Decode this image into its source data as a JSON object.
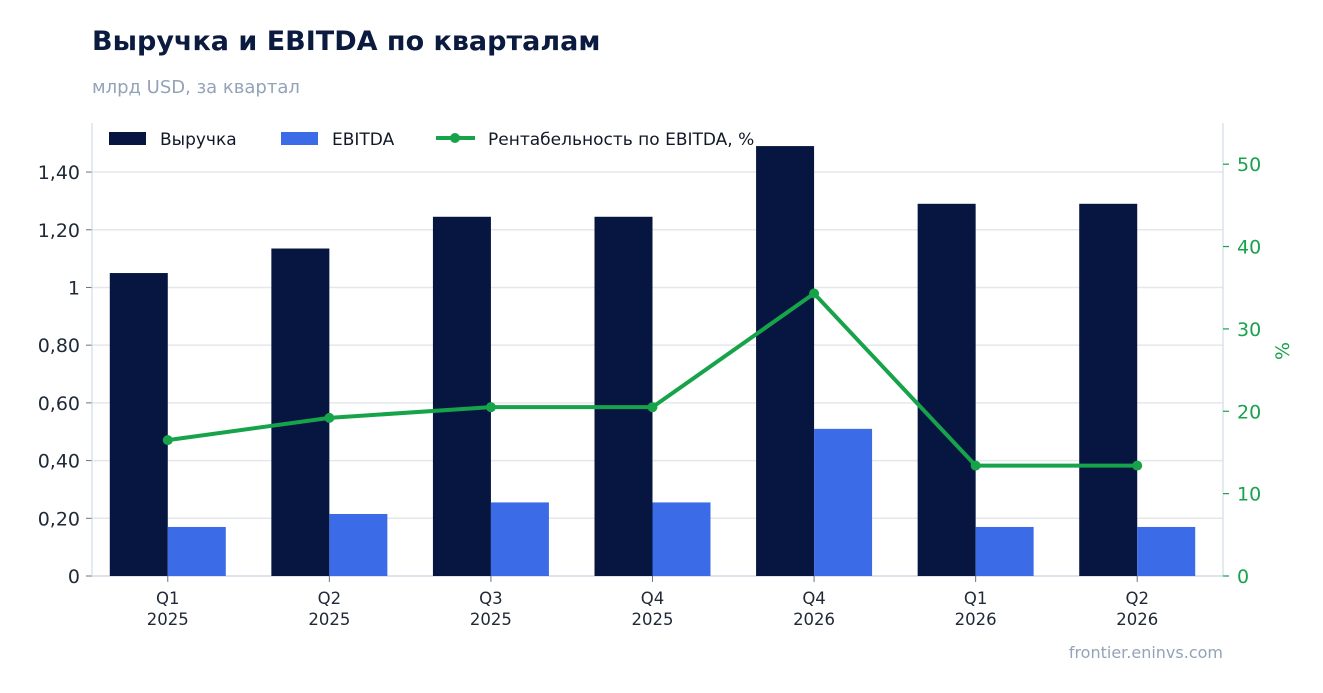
{
  "header": {
    "title": "Выручка и EBITDA по кварталам",
    "subtitle": "млрд USD, за квартал"
  },
  "footer": {
    "source": "frontier.eninvs.com"
  },
  "colors": {
    "revenue": "#061641",
    "ebitda": "#3b6be6",
    "margin": "#16a34a",
    "grid": "#e5e7eb",
    "axis": "#cbd5e1"
  },
  "chart_data": {
    "type": "bar",
    "categories": [
      [
        "Q1",
        "2025"
      ],
      [
        "Q2",
        "2025"
      ],
      [
        "Q3",
        "2025"
      ],
      [
        "Q4",
        "2025"
      ],
      [
        "Q4",
        "2026"
      ],
      [
        "Q1",
        "2026"
      ],
      [
        "Q2",
        "2026"
      ]
    ],
    "series": [
      {
        "name": "Выручка",
        "type": "bar",
        "axis": "left",
        "values": [
          1.05,
          1.135,
          1.245,
          1.245,
          1.49,
          1.29,
          1.29
        ]
      },
      {
        "name": "EBITDA",
        "type": "bar",
        "axis": "left",
        "values": [
          0.17,
          0.215,
          0.255,
          0.255,
          0.51,
          0.17,
          0.17
        ]
      },
      {
        "name": "Рентабельность по EBITDA, %",
        "type": "line",
        "axis": "right",
        "values": [
          16.5,
          19.2,
          20.5,
          20.5,
          34.3,
          13.4,
          13.4
        ]
      }
    ],
    "y_left": {
      "range": [
        0,
        1.57
      ],
      "ticks": [
        0,
        0.2,
        0.4,
        0.6,
        0.8,
        1.0,
        1.2,
        1.4
      ],
      "tick_labels": [
        "0",
        "0,20",
        "0,40",
        "0,60",
        "0,80",
        "1",
        "1,20",
        "1,40"
      ]
    },
    "y_right": {
      "label": "%",
      "range": [
        0,
        55
      ],
      "ticks": [
        0,
        10,
        20,
        30,
        40,
        50
      ],
      "tick_labels": [
        "0",
        "10",
        "20",
        "30",
        "40",
        "50"
      ]
    },
    "grid": true,
    "legend": "top-left"
  }
}
